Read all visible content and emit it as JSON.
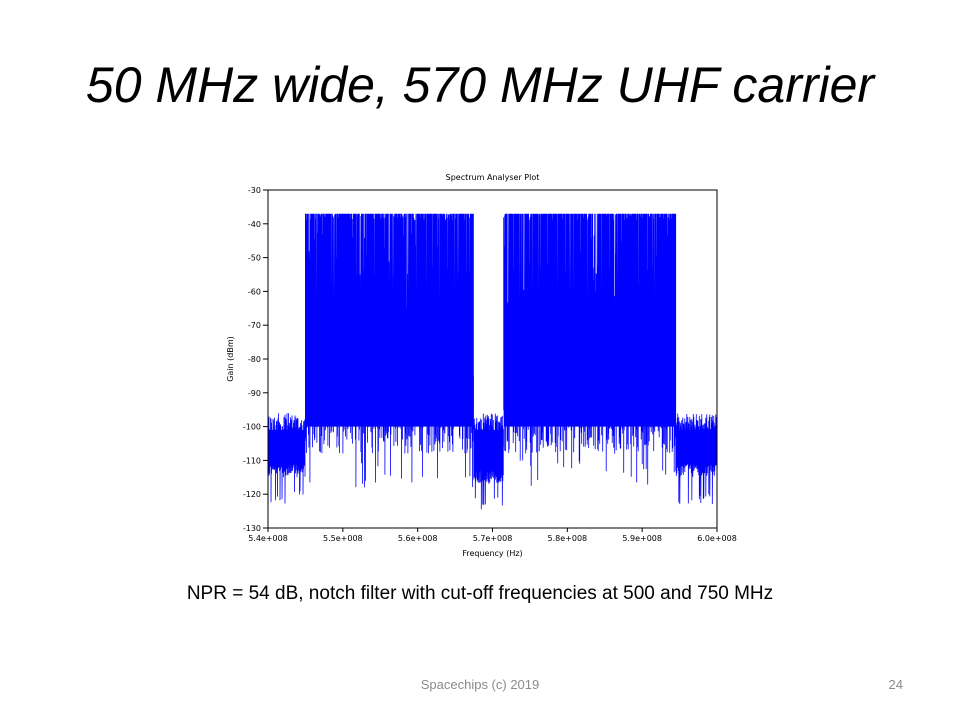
{
  "slide": {
    "title": "50 MHz wide, 570 MHz UHF carrier",
    "caption": "NPR = 54 dB, notch filter with cut-off frequencies at 500 and 750 MHz",
    "footer": "Spacechips (c) 2019",
    "page_number": "24"
  },
  "chart_data": {
    "type": "line",
    "title": "Spectrum Analyser Plot",
    "xlabel": "Frequency (Hz)",
    "ylabel": "Gain (dBm)",
    "xlim": [
      540000000,
      600000000
    ],
    "ylim": [
      -130,
      -30
    ],
    "x_tick_values": [
      540000000,
      550000000,
      560000000,
      570000000,
      580000000,
      590000000,
      600000000
    ],
    "x_tick_labels": [
      "5.4e+008",
      "5.5e+008",
      "5.6e+008",
      "5.7e+008",
      "5.8e+008",
      "5.9e+008",
      "6.0e+008"
    ],
    "y_tick_values": [
      -30,
      -40,
      -50,
      -60,
      -70,
      -80,
      -90,
      -100,
      -110,
      -120,
      -130
    ],
    "y_tick_labels": [
      "-30",
      "-40",
      "-50",
      "-60",
      "-70",
      "-80",
      "-90",
      "-100",
      "-110",
      "-120",
      "-130"
    ],
    "grid": false,
    "series": [
      {
        "color": "#0000ff",
        "segments": [
          {
            "x_start": 540000000,
            "x_end": 545000000,
            "peak": -96,
            "floor": -111
          },
          {
            "x_start": 545000000,
            "x_end": 567500000,
            "peak": -37,
            "floor": -108
          },
          {
            "x_start": 567500000,
            "x_end": 571500000,
            "peak": -96,
            "floor": -113
          },
          {
            "x_start": 571500000,
            "x_end": 594500000,
            "peak": -37,
            "floor": -108
          },
          {
            "x_start": 594500000,
            "x_end": 600000000,
            "peak": -96,
            "floor": -111
          }
        ]
      }
    ]
  }
}
